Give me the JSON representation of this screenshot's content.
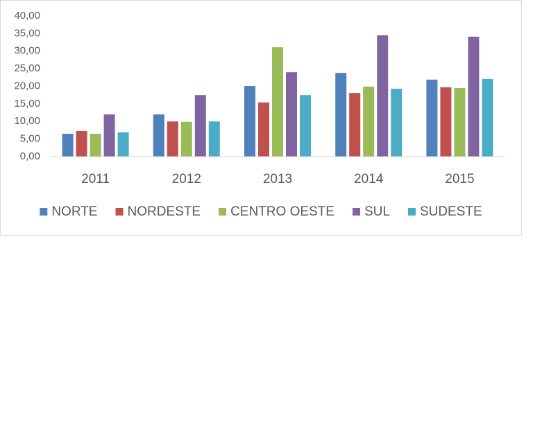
{
  "chart_data": {
    "type": "bar",
    "categories": [
      "2011",
      "2012",
      "2013",
      "2014",
      "2015"
    ],
    "series": [
      {
        "name": "NORTE",
        "color": "#4f81bd",
        "values": [
          6.5,
          12.0,
          20.1,
          23.8,
          21.9
        ]
      },
      {
        "name": "NORDESTE",
        "color": "#c0504d",
        "values": [
          7.3,
          10.0,
          15.4,
          18.1,
          19.7
        ]
      },
      {
        "name": "CENTRO OESTE",
        "color": "#9bbb59",
        "values": [
          6.5,
          9.9,
          31.1,
          19.9,
          19.5
        ]
      },
      {
        "name": "SUL",
        "color": "#8064a2",
        "values": [
          12.0,
          17.5,
          24.0,
          34.5,
          34.1
        ]
      },
      {
        "name": "SUDESTE",
        "color": "#4bacc6",
        "values": [
          6.9,
          10.0,
          17.5,
          19.3,
          22.1
        ]
      }
    ],
    "ylim": [
      0,
      40
    ],
    "yticks": [
      {
        "value": 0,
        "label": "0,00"
      },
      {
        "value": 5,
        "label": "5,00"
      },
      {
        "value": 10,
        "label": "10,00"
      },
      {
        "value": 15,
        "label": "15,00"
      },
      {
        "value": 20,
        "label": "20,00"
      },
      {
        "value": 25,
        "label": "25,00"
      },
      {
        "value": 30,
        "label": "30,00"
      },
      {
        "value": 35,
        "label": "35,00"
      },
      {
        "value": 40,
        "label": "40,00"
      }
    ],
    "grid": false,
    "legend": "bottom"
  }
}
